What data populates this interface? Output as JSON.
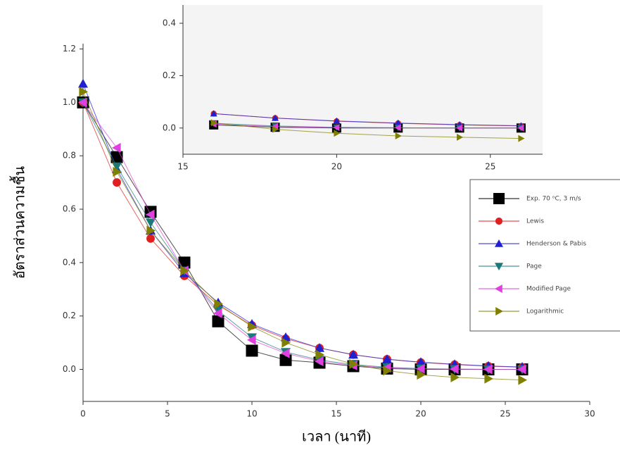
{
  "chart_data": [
    {
      "type": "line",
      "x_label": "เวลา (นาที)",
      "y_label": "อัตราส่วนความชื้น",
      "x": [
        0,
        2,
        4,
        6,
        8,
        10,
        12,
        14,
        16,
        18,
        20,
        22,
        24,
        26
      ],
      "xlim": [
        0,
        30
      ],
      "xticks": [
        0,
        5,
        10,
        15,
        20,
        25,
        30
      ],
      "ylim": [
        -0.12,
        1.22
      ],
      "yticks": [
        {
          "value": 0,
          "label": "0.0"
        },
        0.2,
        0.4,
        0.6,
        0.8,
        {
          "value": 1,
          "label": "1.0"
        },
        1.2
      ],
      "legend": "right",
      "series": [
        {
          "name": "Exp. 70 ᵒC, 3 m/s",
          "color": "#000000",
          "marker": "square",
          "values": [
            1.0,
            0.795,
            0.59,
            0.4,
            0.18,
            0.07,
            0.035,
            0.025,
            0.012,
            0.003,
            0.0,
            0.0,
            0.0,
            0.0
          ]
        },
        {
          "name": "Lewis",
          "color": "#e02020",
          "marker": "circle",
          "values": [
            1.0,
            0.7,
            0.49,
            0.35,
            0.24,
            0.165,
            0.115,
            0.08,
            0.055,
            0.038,
            0.026,
            0.018,
            0.012,
            0.008
          ]
        },
        {
          "name": "Henderson & Pabis",
          "color": "#2020d0",
          "marker": "up",
          "values": [
            1.07,
            0.75,
            0.52,
            0.36,
            0.25,
            0.17,
            0.12,
            0.08,
            0.055,
            0.038,
            0.027,
            0.019,
            0.013,
            0.009
          ]
        },
        {
          "name": "Page",
          "color": "#1a7a7a",
          "marker": "down",
          "values": [
            1.0,
            0.76,
            0.55,
            0.37,
            0.22,
            0.12,
            0.065,
            0.035,
            0.018,
            0.008,
            0.003,
            0.001,
            0.0,
            0.0
          ]
        },
        {
          "name": "Modified Page",
          "color": "#e040e0",
          "marker": "left",
          "values": [
            1.0,
            0.83,
            0.58,
            0.37,
            0.21,
            0.11,
            0.06,
            0.03,
            0.015,
            0.006,
            0.002,
            0.001,
            0.0,
            0.0
          ]
        },
        {
          "name": "Logarithmic",
          "color": "#808000",
          "marker": "right",
          "values": [
            1.04,
            0.74,
            0.52,
            0.37,
            0.245,
            0.16,
            0.1,
            0.055,
            0.02,
            -0.005,
            -0.02,
            -0.03,
            -0.035,
            -0.04
          ]
        }
      ]
    },
    {
      "type": "line",
      "x": [
        16,
        18,
        20,
        22,
        24,
        26
      ],
      "xlim": [
        15,
        26.7
      ],
      "xticks": [
        15,
        20,
        25
      ],
      "ylim": [
        -0.1,
        0.47
      ],
      "yticks": [
        {
          "value": 0,
          "label": "0.0"
        },
        0.2,
        0.4
      ],
      "series": [
        {
          "color": "#000000",
          "marker": "square",
          "values": [
            0.012,
            0.003,
            0.0,
            0.0,
            0.0,
            0.0
          ]
        },
        {
          "color": "#e02020",
          "marker": "circle",
          "values": [
            0.055,
            0.038,
            0.026,
            0.018,
            0.012,
            0.008
          ]
        },
        {
          "color": "#2020d0",
          "marker": "up",
          "values": [
            0.055,
            0.038,
            0.027,
            0.019,
            0.013,
            0.009
          ]
        },
        {
          "color": "#1a7a7a",
          "marker": "down",
          "values": [
            0.018,
            0.008,
            0.003,
            0.001,
            0.0,
            0.0
          ]
        },
        {
          "color": "#e040e0",
          "marker": "left",
          "values": [
            0.015,
            0.006,
            0.002,
            0.001,
            0.0,
            0.0
          ]
        },
        {
          "color": "#808000",
          "marker": "right",
          "values": [
            0.02,
            -0.005,
            -0.02,
            -0.03,
            -0.035,
            -0.04
          ]
        }
      ]
    }
  ]
}
